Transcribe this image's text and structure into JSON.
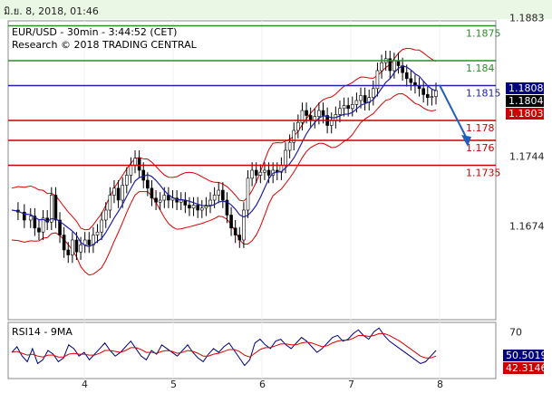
{
  "header": {
    "timestamp": "มิ.ย. 8, 2018, 01:46"
  },
  "chart_data": {
    "type": "candlestick",
    "symbol_line": "EUR/USD - 30min - 3:44:52 (CET)",
    "credit_line": "Research © 2018 TRADING CENTRAL",
    "x_ticks": [
      "4",
      "5",
      "6",
      "7",
      "8"
    ],
    "y_ticks": [
      "1.1883",
      "1.1744",
      "1.1674"
    ],
    "ylim": [
      1.158,
      1.188
    ],
    "levels": [
      {
        "label": "1.1875",
        "value": 1.1875,
        "color": "#2e8b2e"
      },
      {
        "label": "1.184",
        "value": 1.184,
        "color": "#2e8b2e"
      },
      {
        "label": "1.1815",
        "value": 1.1815,
        "color": "#2222aa"
      },
      {
        "label": "1.178",
        "value": 1.178,
        "color": "#cc0000"
      },
      {
        "label": "1.176",
        "value": 1.176,
        "color": "#cc0000"
      },
      {
        "label": "1.1735",
        "value": 1.1735,
        "color": "#cc0000"
      }
    ],
    "price_badges": [
      {
        "label": "1.18083",
        "value": 1.18083,
        "color": "#000080"
      },
      {
        "label": "1.18046",
        "value": 1.18046,
        "color": "#000000"
      },
      {
        "label": "1.18033",
        "value": 1.18033,
        "color": "#cc0000"
      }
    ],
    "close_path": [
      [
        0,
        1.169
      ],
      [
        6,
        1.1688
      ],
      [
        12,
        1.168
      ],
      [
        18,
        1.1684
      ],
      [
        22,
        1.1672
      ],
      [
        26,
        1.1668
      ],
      [
        30,
        1.1682
      ],
      [
        34,
        1.1678
      ],
      [
        38,
        1.1705
      ],
      [
        42,
        1.168
      ],
      [
        46,
        1.1665
      ],
      [
        50,
        1.165
      ],
      [
        54,
        1.1645
      ],
      [
        58,
        1.166
      ],
      [
        62,
        1.1648
      ],
      [
        66,
        1.1655
      ],
      [
        70,
        1.166
      ],
      [
        74,
        1.1655
      ],
      [
        78,
        1.1665
      ],
      [
        82,
        1.1668
      ],
      [
        86,
        1.168
      ],
      [
        90,
        1.169
      ],
      [
        94,
        1.1705
      ],
      [
        98,
        1.1712
      ],
      [
        102,
        1.17
      ],
      [
        106,
        1.1715
      ],
      [
        110,
        1.1725
      ],
      [
        114,
        1.1735
      ],
      [
        118,
        1.1742
      ],
      [
        122,
        1.173
      ],
      [
        126,
        1.172
      ],
      [
        130,
        1.1712
      ],
      [
        134,
        1.1702
      ],
      [
        138,
        1.1698
      ],
      [
        142,
        1.17
      ],
      [
        146,
        1.1705
      ],
      [
        150,
        1.17
      ],
      [
        154,
        1.1702
      ],
      [
        158,
        1.1698
      ],
      [
        162,
        1.17
      ],
      [
        166,
        1.1695
      ],
      [
        170,
        1.1692
      ],
      [
        174,
        1.1695
      ],
      [
        178,
        1.169
      ],
      [
        182,
        1.1692
      ],
      [
        186,
        1.1695
      ],
      [
        190,
        1.17
      ],
      [
        194,
        1.1705
      ],
      [
        198,
        1.171
      ],
      [
        202,
        1.17
      ],
      [
        206,
        1.1685
      ],
      [
        210,
        1.1672
      ],
      [
        214,
        1.1665
      ],
      [
        218,
        1.166
      ],
      [
        222,
        1.169
      ],
      [
        226,
        1.1722
      ],
      [
        230,
        1.173
      ],
      [
        234,
        1.1725
      ],
      [
        238,
        1.1728
      ],
      [
        242,
        1.173
      ],
      [
        246,
        1.1725
      ],
      [
        250,
        1.173
      ],
      [
        254,
        1.1728
      ],
      [
        258,
        1.1735
      ],
      [
        262,
        1.175
      ],
      [
        266,
        1.1758
      ],
      [
        270,
        1.177
      ],
      [
        274,
        1.1778
      ],
      [
        278,
        1.179
      ],
      [
        282,
        1.1785
      ],
      [
        286,
        1.178
      ],
      [
        290,
        1.1784
      ],
      [
        294,
        1.179
      ],
      [
        298,
        1.1785
      ],
      [
        302,
        1.1775
      ],
      [
        306,
        1.178
      ],
      [
        310,
        1.1786
      ],
      [
        314,
        1.1792
      ],
      [
        318,
        1.1795
      ],
      [
        322,
        1.1792
      ],
      [
        326,
        1.1796
      ],
      [
        330,
        1.18
      ],
      [
        334,
        1.1805
      ],
      [
        338,
        1.1798
      ],
      [
        342,
        1.1803
      ],
      [
        346,
        1.1812
      ],
      [
        350,
        1.183
      ],
      [
        354,
        1.1838
      ],
      [
        358,
        1.1842
      ],
      [
        362,
        1.183
      ],
      [
        366,
        1.184
      ],
      [
        370,
        1.1835
      ],
      [
        374,
        1.1828
      ],
      [
        378,
        1.1822
      ],
      [
        382,
        1.1818
      ],
      [
        386,
        1.1815
      ],
      [
        390,
        1.1812
      ],
      [
        394,
        1.1806
      ],
      [
        398,
        1.1803
      ],
      [
        402,
        1.1804
      ],
      [
        406,
        1.181
      ]
    ],
    "x_tick_index": [
      84,
      182,
      280,
      378,
      476
    ],
    "rsi": {
      "label": "RSI14 - 9MA",
      "ylim": [
        20,
        80
      ],
      "ticks": [
        "70"
      ],
      "badges": [
        {
          "label": "50.5019",
          "value": 50.5,
          "color": "#000080"
        },
        {
          "label": "42.3146",
          "value": 42.3,
          "color": "#cc0000"
        }
      ],
      "series": [
        48,
        54,
        44,
        38,
        52,
        36,
        40,
        50,
        46,
        38,
        42,
        56,
        52,
        44,
        48,
        40,
        46,
        52,
        58,
        50,
        44,
        48,
        54,
        60,
        52,
        44,
        40,
        50,
        46,
        56,
        52,
        48,
        44,
        50,
        56,
        48,
        42,
        38,
        46,
        52,
        48,
        54,
        58,
        50,
        42,
        34,
        40,
        58,
        62,
        56,
        52,
        60,
        62,
        56,
        52,
        58,
        64,
        60,
        54,
        48,
        52,
        58,
        64,
        66,
        60,
        62,
        68,
        72,
        66,
        62,
        70,
        74,
        66,
        60,
        56,
        52,
        48,
        44,
        40,
        36,
        38,
        44,
        50
      ],
      "ma": [
        48,
        49,
        47,
        45,
        46,
        44,
        43,
        45,
        45,
        43,
        43,
        46,
        47,
        46,
        46,
        45,
        45,
        47,
        50,
        50,
        49,
        48,
        50,
        53,
        53,
        51,
        48,
        48,
        47,
        49,
        50,
        49,
        47,
        48,
        50,
        49,
        47,
        44,
        44,
        46,
        47,
        49,
        51,
        51,
        49,
        45,
        43,
        47,
        51,
        53,
        53,
        55,
        57,
        57,
        56,
        56,
        58,
        59,
        58,
        56,
        54,
        55,
        58,
        60,
        61,
        61,
        63,
        66,
        66,
        65,
        66,
        68,
        68,
        66,
        63,
        60,
        56,
        52,
        48,
        44,
        42,
        42,
        44
      ]
    }
  }
}
